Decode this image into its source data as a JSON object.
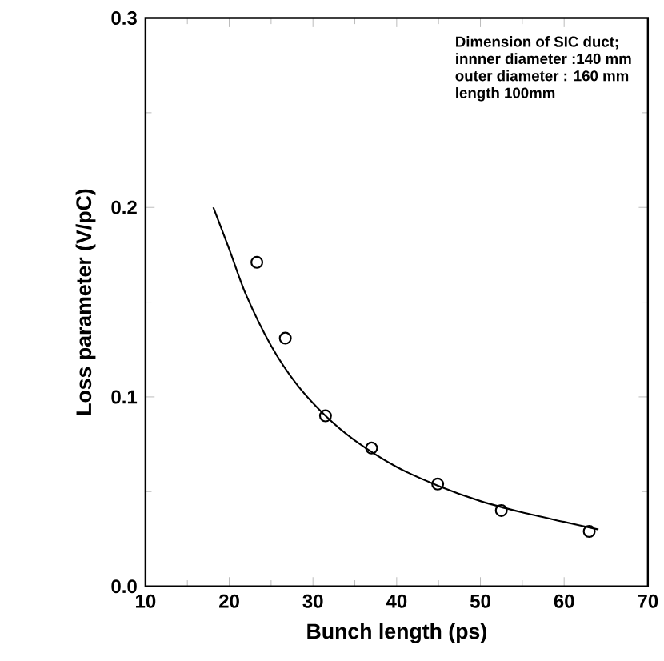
{
  "chart_data": {
    "type": "scatter",
    "xlabel": "Bunch length (ps)",
    "ylabel": "Loss parameter (V/pC)",
    "xlim": [
      10,
      70
    ],
    "ylim": [
      0,
      0.3
    ],
    "xticks": [
      10,
      20,
      30,
      40,
      50,
      60,
      70
    ],
    "yticks": [
      {
        "value": 0,
        "label": "0.0"
      },
      0.1,
      0.2,
      0.3
    ],
    "marker": "circle",
    "grid": false,
    "annotations": [
      "Dimension of SIC duct;",
      "innner diameter :140 mm",
      "outer diameter : 160 mm",
      "length    100mm"
    ],
    "series": [
      {
        "color": "#000000",
        "x": [
          23.3,
          26.7,
          31.5,
          37.0,
          44.9,
          52.5,
          63.0
        ],
        "values": [
          0.171,
          0.131,
          0.09,
          0.073,
          0.054,
          0.04,
          0.029
        ]
      },
      {
        "type": "line",
        "marker": "none",
        "color": "#000000",
        "x": [
          18.1,
          20,
          22,
          25,
          28,
          31.5,
          35,
          40,
          45,
          50,
          55,
          60,
          64.1
        ],
        "values": [
          0.2,
          0.178,
          0.154,
          0.127,
          0.107,
          0.09,
          0.077,
          0.063,
          0.053,
          0.045,
          0.039,
          0.034,
          0.03
        ]
      }
    ]
  }
}
